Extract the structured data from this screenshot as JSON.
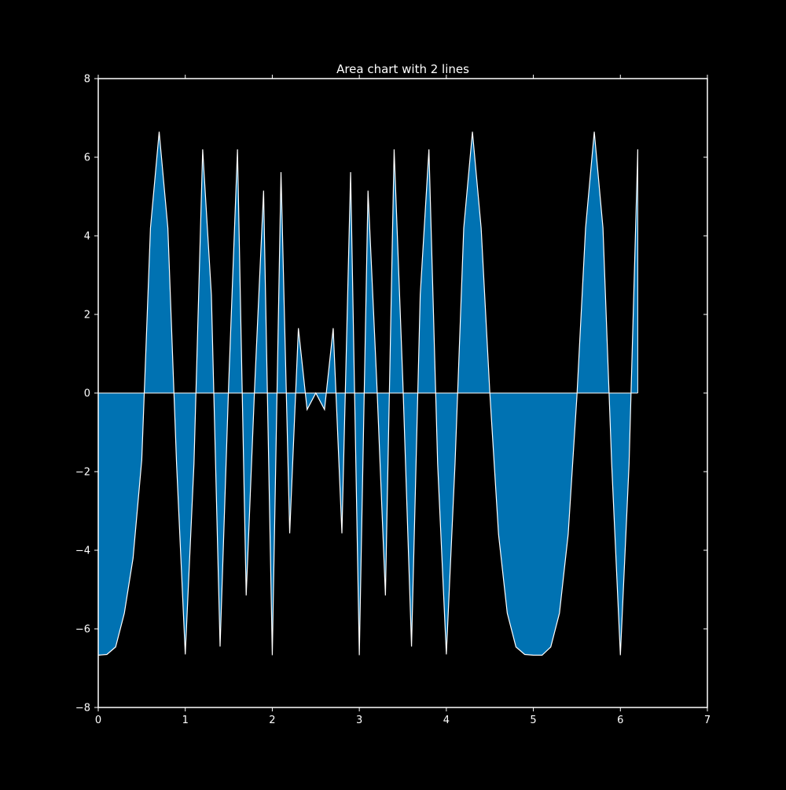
{
  "chart_data": {
    "type": "area",
    "title": "Area chart with 2 lines",
    "xlabel": "",
    "ylabel": "",
    "xlim": [
      0,
      7
    ],
    "ylim": [
      -8,
      8
    ],
    "x_ticks": [
      0,
      1,
      2,
      3,
      4,
      5,
      6,
      7
    ],
    "x_tick_labels": [
      "0",
      "1",
      "2",
      "3",
      "4",
      "5",
      "6",
      "7"
    ],
    "y_ticks": [
      -8,
      -6,
      -4,
      -2,
      0,
      2,
      4,
      6,
      8
    ],
    "y_tick_labels": [
      "−8",
      "−6",
      "−4",
      "−2",
      "0",
      "2",
      "4",
      "6",
      "8"
    ],
    "grid": false,
    "background_color": "#000000",
    "fill_color": "#0072b2",
    "line_color": "#ffffff",
    "series": [
      {
        "x": [
          0,
          0.1,
          0.2,
          0.3,
          0.4,
          0.5,
          0.6,
          0.7,
          0.8,
          0.9,
          1.0,
          1.1,
          1.2,
          1.3,
          1.4,
          1.5,
          1.6,
          1.7,
          1.8,
          1.9,
          2.0,
          2.1,
          2.2,
          2.3,
          2.4,
          2.5,
          2.6,
          2.7,
          2.8,
          2.9,
          3.0,
          3.1,
          3.2,
          3.3,
          3.4,
          3.5,
          3.6,
          3.7,
          3.8,
          3.9,
          4.0,
          4.1,
          4.2,
          4.3,
          4.4,
          4.5,
          4.6,
          4.7,
          4.8,
          4.9,
          5.0,
          5.1,
          5.2,
          5.3,
          5.4,
          5.5,
          5.6,
          5.7,
          5.8,
          5.9,
          6.0,
          6.1,
          6.2
        ],
        "y": [
          -6.67,
          -6.65,
          -6.46,
          -5.6,
          -4.2,
          -1.7,
          4.2,
          6.65,
          4.2,
          -1.8,
          -6.65,
          -1.8,
          6.2,
          2.5,
          -6.45,
          0.3,
          6.2,
          -5.15,
          0.3,
          5.15,
          -6.67,
          5.62,
          -3.57,
          1.65,
          -0.42,
          0.0,
          -0.42,
          1.65,
          -3.57,
          5.62,
          -6.67,
          5.15,
          0.3,
          -5.15,
          6.2,
          0.3,
          -6.45,
          2.5,
          6.2,
          -1.8,
          -6.65,
          -1.8,
          4.2,
          6.65,
          4.2,
          0.0,
          -3.6,
          -5.6,
          -6.46,
          -6.65,
          -6.67,
          -6.67,
          -6.46,
          -5.6,
          -3.6,
          -0.1,
          4.2,
          6.65,
          4.2,
          -1.8,
          -6.67,
          -1.8,
          6.2
        ]
      },
      {
        "x": [
          0,
          6.2
        ],
        "y": [
          0,
          0
        ]
      }
    ]
  }
}
